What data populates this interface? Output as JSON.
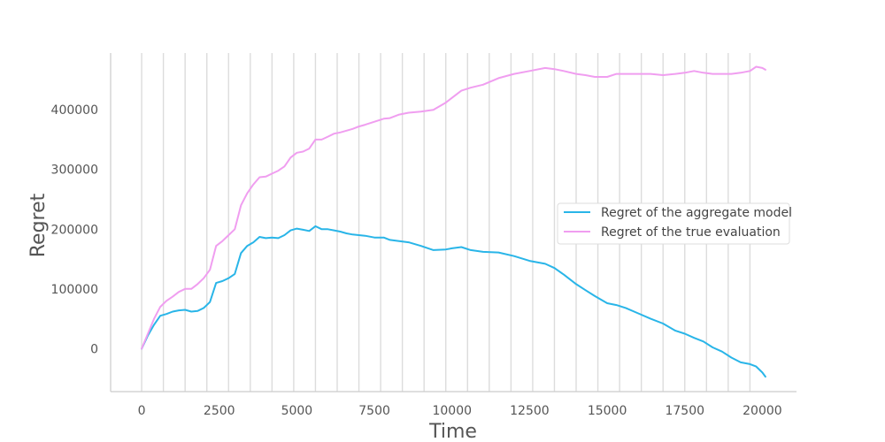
{
  "chart_data": {
    "type": "line",
    "title": "",
    "xlabel": "Time",
    "ylabel": "Regret",
    "xlim": [
      -1000,
      21100
    ],
    "ylim": [
      -72000,
      495000
    ],
    "xticks": [
      0,
      2500,
      5000,
      7500,
      10000,
      12500,
      15000,
      17500,
      20000
    ],
    "xtick_labels": [
      "0",
      "2500",
      "5000",
      "7500",
      "10000",
      "12500",
      "15000",
      "17500",
      "20000"
    ],
    "yticks": [
      0,
      100000,
      200000,
      300000,
      400000
    ],
    "ytick_labels": [
      "0",
      "100000",
      "200000",
      "300000",
      "400000"
    ],
    "grid": "vertical lines only",
    "vertical_gridlines_x": [
      0,
      700,
      1400,
      2100,
      2800,
      3500,
      4200,
      4900,
      5600,
      6300,
      7000,
      7700,
      8400,
      9100,
      9800,
      10500,
      11200,
      11900,
      12600,
      13300,
      14000,
      14700,
      15400,
      16100,
      16800,
      17500,
      18200,
      18900,
      19600
    ],
    "legend": {
      "placement": "center-right"
    },
    "series": [
      {
        "name": "Regret of the aggregate model",
        "color": "#29b5e8",
        "x": [
          0,
          200,
          400,
          600,
          800,
          1000,
          1200,
          1400,
          1600,
          1800,
          2000,
          2200,
          2400,
          2600,
          2800,
          3000,
          3200,
          3400,
          3600,
          3800,
          4000,
          4200,
          4400,
          4600,
          4800,
          5000,
          5200,
          5400,
          5600,
          5800,
          6000,
          6200,
          6400,
          6600,
          6800,
          7000,
          7200,
          7500,
          7800,
          8000,
          8300,
          8600,
          9000,
          9400,
          9800,
          10000,
          10300,
          10600,
          11000,
          11500,
          12000,
          12500,
          13000,
          13300,
          13600,
          14000,
          14300,
          14600,
          15000,
          15300,
          15600,
          16000,
          16400,
          16800,
          17200,
          17500,
          17800,
          18100,
          18400,
          18700,
          19000,
          19300,
          19600,
          19800,
          20000,
          20100
        ],
        "y": [
          0,
          22000,
          40000,
          55000,
          58000,
          62000,
          64000,
          65000,
          62000,
          63000,
          68000,
          78000,
          110000,
          113000,
          118000,
          125000,
          160000,
          172000,
          178000,
          187000,
          185000,
          186000,
          185000,
          190000,
          198000,
          201000,
          199000,
          197000,
          205000,
          200000,
          200000,
          198000,
          196000,
          193000,
          191000,
          190000,
          189000,
          186000,
          186000,
          182000,
          180000,
          178000,
          172000,
          165000,
          166000,
          168000,
          170000,
          165000,
          162000,
          161000,
          155000,
          147000,
          142000,
          135000,
          124000,
          108000,
          98000,
          88000,
          76000,
          73000,
          68000,
          59000,
          50000,
          42000,
          30000,
          25000,
          18000,
          12000,
          2000,
          -5000,
          -15000,
          -23000,
          -26000,
          -30000,
          -40000,
          -47000
        ]
      },
      {
        "name": "Regret of the true evaluation",
        "color": "#f09ef0",
        "x": [
          0,
          200,
          400,
          600,
          800,
          1000,
          1200,
          1400,
          1600,
          1800,
          2000,
          2200,
          2400,
          2600,
          2800,
          3000,
          3200,
          3400,
          3600,
          3800,
          4000,
          4200,
          4400,
          4600,
          4800,
          5000,
          5200,
          5400,
          5600,
          5800,
          6000,
          6200,
          6400,
          6600,
          6800,
          7000,
          7200,
          7500,
          7800,
          8000,
          8300,
          8600,
          9000,
          9400,
          9800,
          10000,
          10300,
          10600,
          11000,
          11500,
          12000,
          12500,
          13000,
          13300,
          13600,
          14000,
          14300,
          14600,
          15000,
          15300,
          15600,
          16000,
          16400,
          16800,
          17200,
          17500,
          17800,
          18100,
          18400,
          18700,
          19000,
          19300,
          19600,
          19800,
          20000,
          20100
        ],
        "y": [
          0,
          25000,
          50000,
          70000,
          80000,
          87000,
          95000,
          100000,
          100000,
          108000,
          118000,
          132000,
          172000,
          180000,
          190000,
          200000,
          240000,
          260000,
          275000,
          287000,
          288000,
          293000,
          298000,
          305000,
          320000,
          328000,
          330000,
          335000,
          350000,
          350000,
          355000,
          360000,
          362000,
          365000,
          368000,
          372000,
          375000,
          380000,
          385000,
          386000,
          392000,
          395000,
          397000,
          400000,
          412000,
          420000,
          432000,
          437000,
          442000,
          453000,
          460000,
          465000,
          470000,
          468000,
          465000,
          460000,
          458000,
          455000,
          455000,
          460000,
          460000,
          460000,
          460000,
          458000,
          460000,
          462000,
          465000,
          462000,
          460000,
          460000,
          460000,
          462000,
          465000,
          472000,
          470000,
          467000
        ]
      }
    ]
  }
}
